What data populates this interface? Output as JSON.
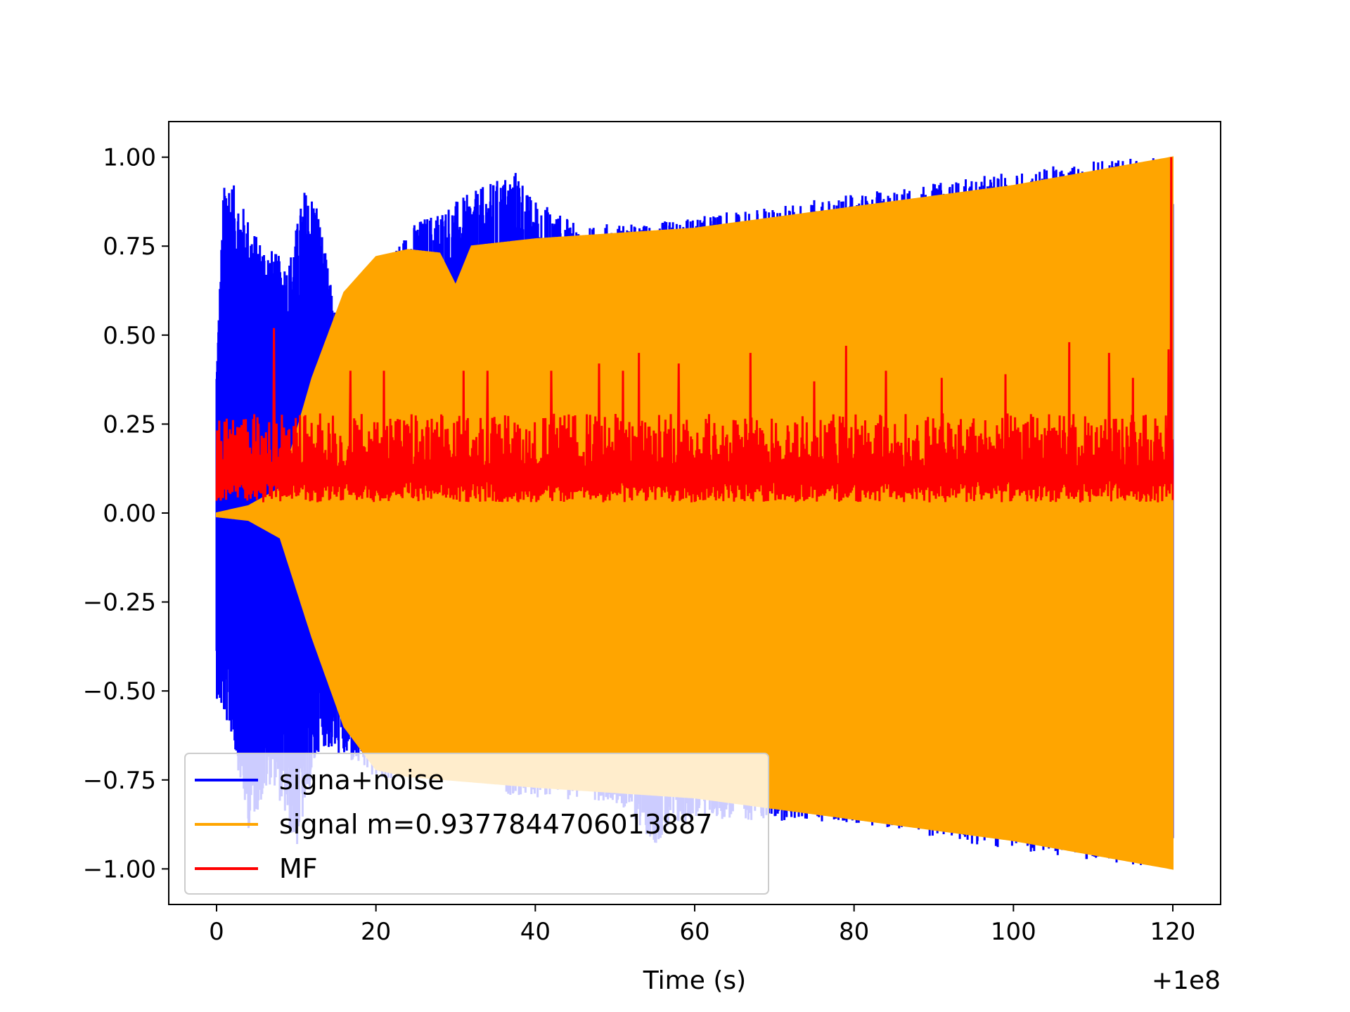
{
  "chart_data": {
    "type": "line",
    "title": "",
    "xlabel": "Time (s)",
    "ylabel": "",
    "x_offset_text": "+1e8",
    "xlim": [
      -6,
      126
    ],
    "ylim": [
      -1.1,
      1.1
    ],
    "xticks": [
      0,
      20,
      40,
      60,
      80,
      100,
      120
    ],
    "yticks": [
      1.0,
      0.75,
      0.5,
      0.25,
      0.0,
      -0.25,
      -0.5,
      -0.75,
      -1.0
    ],
    "xtick_labels": [
      "0",
      "20",
      "40",
      "60",
      "80",
      "100",
      "120"
    ],
    "ytick_labels": [
      "1.00",
      "0.75",
      "0.50",
      "0.25",
      "0.00",
      "−0.25",
      "−0.50",
      "−0.75",
      "−1.00"
    ],
    "grid": false,
    "legend_position": "lower-left",
    "series": [
      {
        "name": "signa+noise",
        "color": "#0000ff",
        "kind": "noisy oscillation",
        "x_range": [
          0,
          120
        ],
        "envelope_upper": [
          [
            0,
            0.42
          ],
          [
            1,
            0.98
          ],
          [
            5,
            0.78
          ],
          [
            9,
            0.7
          ],
          [
            11,
            0.91
          ],
          [
            12.5,
            0.89
          ],
          [
            15,
            0.55
          ],
          [
            25,
            0.82
          ],
          [
            38,
            0.97
          ],
          [
            39,
            0.9
          ],
          [
            46,
            0.8
          ],
          [
            50,
            0.82
          ],
          [
            53,
            0.81
          ],
          [
            113,
            1.0
          ],
          [
            120,
            1.0
          ]
        ],
        "envelope_lower": [
          [
            0,
            -0.52
          ],
          [
            2,
            -0.63
          ],
          [
            4,
            -0.89
          ],
          [
            7,
            -0.75
          ],
          [
            10,
            -0.95
          ],
          [
            13,
            -0.65
          ],
          [
            20,
            -0.75
          ],
          [
            30,
            -0.75
          ],
          [
            38,
            -0.8
          ],
          [
            50,
            -0.81
          ],
          [
            55,
            -0.93
          ],
          [
            60,
            -0.86
          ],
          [
            80,
            -0.87
          ],
          [
            100,
            -0.95
          ],
          [
            120,
            -1.0
          ]
        ]
      },
      {
        "name": "signal m=0.9377844706013887",
        "color": "#ffa500",
        "kind": "chirp oscillation",
        "x_range": [
          0,
          120
        ],
        "envelope_upper": [
          [
            0,
            0.0
          ],
          [
            4,
            0.02
          ],
          [
            8,
            0.07
          ],
          [
            12,
            0.38
          ],
          [
            16,
            0.62
          ],
          [
            20,
            0.72
          ],
          [
            24,
            0.74
          ],
          [
            28,
            0.73
          ],
          [
            30,
            0.64
          ],
          [
            32,
            0.75
          ],
          [
            40,
            0.77
          ],
          [
            60,
            0.8
          ],
          [
            80,
            0.86
          ],
          [
            100,
            0.92
          ],
          [
            120,
            1.0
          ]
        ],
        "envelope_lower": [
          [
            0,
            -0.01
          ],
          [
            4,
            -0.02
          ],
          [
            8,
            -0.07
          ],
          [
            12,
            -0.35
          ],
          [
            16,
            -0.6
          ],
          [
            20,
            -0.72
          ],
          [
            24,
            -0.74
          ],
          [
            40,
            -0.77
          ],
          [
            60,
            -0.8
          ],
          [
            80,
            -0.86
          ],
          [
            100,
            -0.92
          ],
          [
            120,
            -1.0
          ]
        ]
      },
      {
        "name": "MF",
        "color": "#ff0000",
        "kind": "matched filter output",
        "x_range": [
          0,
          120
        ],
        "baseline": 0.13,
        "typical_high": 0.28,
        "typical_low": 0.03,
        "peaks": [
          [
            7.2,
            0.52
          ],
          [
            16.8,
            0.4
          ],
          [
            21,
            0.4
          ],
          [
            31,
            0.4
          ],
          [
            34,
            0.4
          ],
          [
            42,
            0.4
          ],
          [
            48,
            0.42
          ],
          [
            51,
            0.4
          ],
          [
            53,
            0.45
          ],
          [
            58,
            0.42
          ],
          [
            67,
            0.45
          ],
          [
            75,
            0.37
          ],
          [
            79,
            0.47
          ],
          [
            84,
            0.4
          ],
          [
            91,
            0.38
          ],
          [
            99,
            0.39
          ],
          [
            107,
            0.48
          ],
          [
            112,
            0.45
          ],
          [
            115,
            0.38
          ],
          [
            119.5,
            0.46
          ],
          [
            119.8,
            1.0
          ]
        ]
      }
    ]
  }
}
